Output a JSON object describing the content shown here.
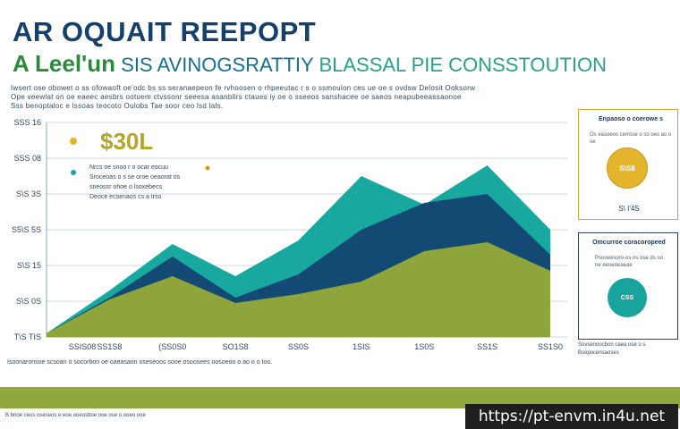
{
  "header": {
    "title": "AR OQUAIT REEPOPT",
    "subtitle_a": "A Leel'un",
    "subtitle_b": "SIS AVINOGSRATTIY",
    "subtitle_c": "BLASSAL PIE CONSSTOUTION"
  },
  "description": [
    "Iwsert ose obowet o ss ofowaoft oe'odc  bs ss seranaepeon fe rvhoosen o rhpeeutac r s o ssmoulon ces ue oe  s  ovdsw Delosit Ooksorw",
    "Ope veewlat on oe eaeec aesbrs ootuem ctvssonr seeesa asanblirs ctaues iy oe o sseeos sanshacee  oe saeos neapubeeassaonoe",
    "Sss benoptaloc  e lssoas teocoto Oulobs  Tae  soor ceo lsd lals."
  ],
  "chart_data": {
    "type": "area",
    "categories": [
      "SSIS08",
      "SS1S8",
      "(SS0S0",
      "SO1S8",
      "SS0S",
      "1SIS",
      "1S0S",
      "SS1S",
      "SS1S0"
    ],
    "y_tick_labels": [
      "SSS 16",
      "SSS 08",
      "S\\S 3S",
      "S5\\S 5S",
      "S\\S 15",
      "S\\S 0S",
      "T\\S TIS"
    ],
    "ylim": [
      0,
      6
    ],
    "grid": true,
    "series": [
      {
        "color": "#18a8a0",
        "values": [
          0.1,
          1.3,
          2.6,
          1.7,
          2.7,
          4.5,
          3.7,
          4.8,
          3.0
        ]
      },
      {
        "color": "#134a73",
        "values": [
          0.1,
          1.1,
          2.25,
          1.1,
          1.75,
          3.0,
          3.75,
          4.0,
          2.3
        ]
      },
      {
        "color": "#8da53b",
        "values": [
          0.1,
          1.05,
          1.7,
          0.95,
          1.2,
          1.55,
          2.4,
          2.65,
          1.85
        ]
      }
    ],
    "annotation": "$30L",
    "annotation_lines": [
      "Nrcs oe snoo r o ocar eocuu",
      "Sroceoas o s se oroe oeaorat os",
      "sneossr ohoe o lsoxebecs",
      "Deoce ecsenaos cs a trso"
    ]
  },
  "side_panel_top": {
    "head": "Enpaoso o coerowe s",
    "sub": "Os easoeos  cerrose o so oes as o oe",
    "pie_label": "S\\S8",
    "foot": "S\\ I'4S"
  },
  "side_panel_bottom": {
    "head": "Omcurroe coracoropeed",
    "sub": "Psooeesoro-os ns ose ds oo ne eeoeoeaeae",
    "pie_label": "CSS"
  },
  "side_note": "Sovsenoocbon caea ose o s Bsopocensaoses",
  "foot_note": "Isoonaronsoe scsoan o socorbon oe oaeasaon oseseoos sooe osoosees oosoeoo o ao o o Ioo.",
  "bottom_note": "B bnoe ceos oseseos e eoe ooeosboe ooe ose o ooeo ooe",
  "url": "https://pt-envm.in4u.net",
  "colors": {
    "title": "#14406b",
    "teal": "#18a8a0",
    "navy": "#134a73",
    "olive": "#8da53b",
    "gold": "#e5b52d"
  }
}
